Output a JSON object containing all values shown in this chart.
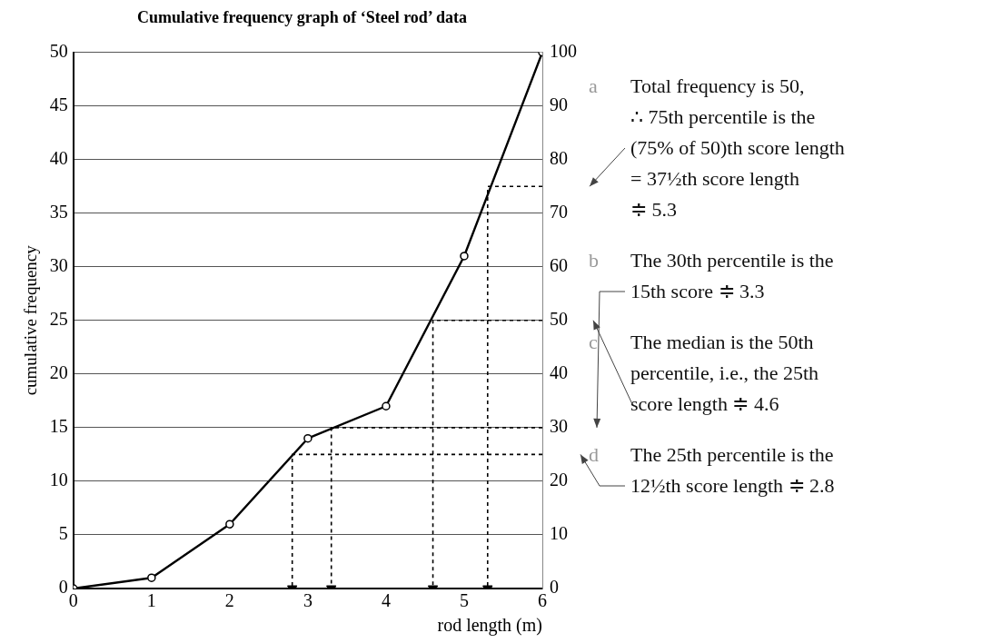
{
  "chart_data": {
    "type": "line",
    "title": "Cumulative frequency graph of ‘Steel rod’ data",
    "xlabel": "rod length (m)",
    "ylabel": "cumulative frequency",
    "xlim": [
      0,
      6
    ],
    "xticks": [
      0,
      1,
      2,
      3,
      4,
      5,
      6
    ],
    "ylim": [
      0,
      50
    ],
    "yticks": [
      0,
      5,
      10,
      15,
      20,
      25,
      30,
      35,
      40,
      45,
      50
    ],
    "y2lim": [
      0,
      100
    ],
    "y2ticks": [
      0,
      10,
      20,
      30,
      40,
      50,
      60,
      70,
      80,
      90,
      100
    ],
    "grid": "y",
    "legend": false,
    "series": [
      {
        "color": "#000000",
        "x": [
          0,
          1,
          2,
          3,
          4,
          5,
          6
        ],
        "values": [
          0,
          1,
          6,
          14,
          17,
          31,
          50
        ],
        "marker": "circle",
        "line_style": "solid"
      },
      {
        "color": "#000000",
        "x": [
          6,
          5.3,
          5.3
        ],
        "values": [
          37.5,
          37.5,
          0
        ],
        "marker": "none",
        "line_style": "dashed"
      },
      {
        "color": "#000000",
        "x": [
          6,
          3.3,
          3.3
        ],
        "values": [
          15,
          15,
          0
        ],
        "marker": "none",
        "line_style": "dashed"
      },
      {
        "color": "#000000",
        "x": [
          6,
          4.6,
          4.6
        ],
        "values": [
          25,
          25,
          0
        ],
        "marker": "none",
        "line_style": "dashed"
      },
      {
        "color": "#000000",
        "x": [
          6,
          2.8,
          2.8
        ],
        "values": [
          12.5,
          12.5,
          0
        ],
        "marker": "none",
        "line_style": "dashed"
      }
    ],
    "annotations": [
      "a Total frequency is 50,\n∴  75th percentile is the\n(75% of 50)th score length\n= 37½th score length\n≑ 5.3",
      "b The 30th percentile is the\n15th score ≑ 3.3",
      "c The median is the 50th\npercentile, i.e., the 25th\nscore length ≑ 4.6",
      "d The 25th percentile is the\n12½th score length ≑ 2.8"
    ]
  }
}
